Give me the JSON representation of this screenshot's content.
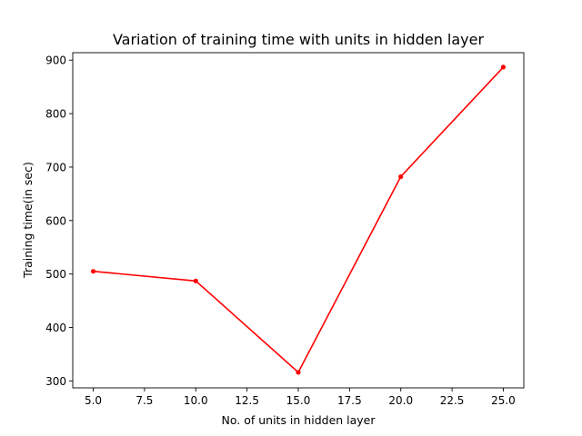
{
  "chart_data": {
    "type": "line",
    "title": "Variation of training time with units in hidden layer",
    "xlabel": "No. of units in hidden layer",
    "ylabel": "Training time(in sec)",
    "x": [
      5,
      10,
      15,
      20,
      25
    ],
    "series": [
      {
        "values": [
          505,
          487,
          316,
          682,
          887
        ]
      }
    ],
    "xlim": [
      4,
      26
    ],
    "ylim": [
      287,
      914
    ],
    "xticks": [
      "5.0",
      "7.5",
      "10.0",
      "12.5",
      "15.0",
      "17.5",
      "20.0",
      "22.5",
      "25.0"
    ],
    "xtick_values": [
      5,
      7.5,
      10,
      12.5,
      15,
      17.5,
      20,
      22.5,
      25
    ],
    "yticks": [
      "300",
      "400",
      "500",
      "600",
      "700",
      "800",
      "900"
    ],
    "ytick_values": [
      300,
      400,
      500,
      600,
      700,
      800,
      900
    ],
    "grid": false,
    "line_color": "#ff0000",
    "marker": "circle"
  }
}
